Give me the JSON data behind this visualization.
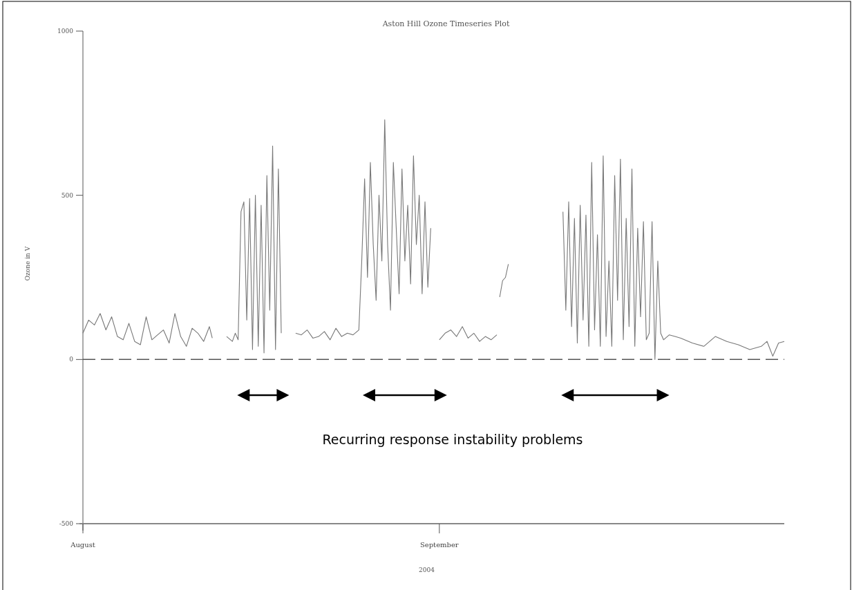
{
  "chart_data": {
    "type": "line",
    "title": "Aston Hill Ozone Timeseries Plot",
    "xlabel": "2004",
    "ylabel": "Ozone in V",
    "annotations": [
      "Recurring response instability problems"
    ],
    "xlim": [
      "2004-08-01",
      "2004-10-01"
    ],
    "xticks": [
      {
        "value": "2004-08-01",
        "label": "August"
      },
      {
        "value": "2004-09-01",
        "label": "September"
      }
    ],
    "ylim": [
      -500,
      1000
    ],
    "yticks": [
      -500,
      0,
      500,
      1000
    ],
    "ref_lines": [
      {
        "axis": "y",
        "value": 0,
        "line_style": "dashed",
        "color": "#555555"
      }
    ],
    "series": [
      {
        "color": "#777777",
        "x": [
          "2004-08-01T00:00",
          "2004-08-01T12:00",
          "2004-08-02T00:00",
          "2004-08-02T12:00",
          "2004-08-03T00:00",
          "2004-08-03T12:00",
          "2004-08-04T00:00",
          "2004-08-04T12:00",
          "2004-08-05T00:00",
          "2004-08-05T12:00",
          "2004-08-06T00:00",
          "2004-08-06T12:00",
          "2004-08-07T00:00",
          "2004-08-07T12:00",
          "2004-08-08T00:00",
          "2004-08-08T12:00",
          "2004-08-09T00:00",
          "2004-08-09T12:00",
          "2004-08-10T00:00",
          "2004-08-10T12:00",
          "2004-08-11T00:00",
          "2004-08-11T12:00",
          "2004-08-12T00:00",
          "2004-08-12T06:00",
          "2004-08-12T12:00",
          "2004-08-13T12:00",
          "2004-08-14T00:00",
          "2004-08-14T06:00",
          "2004-08-14T12:00",
          "2004-08-14T18:00",
          "2004-08-15T00:00",
          "2004-08-15T06:00",
          "2004-08-15T12:00",
          "2004-08-15T18:00",
          "2004-08-16T00:00",
          "2004-08-16T06:00",
          "2004-08-16T12:00",
          "2004-08-16T18:00",
          "2004-08-17T00:00",
          "2004-08-17T06:00",
          "2004-08-17T12:00",
          "2004-08-17T18:00",
          "2004-08-18T00:00",
          "2004-08-18T06:00",
          "2004-08-18T12:00",
          "2004-08-19T12:00",
          "2004-08-20T00:00",
          "2004-08-20T12:00",
          "2004-08-21T00:00",
          "2004-08-21T12:00",
          "2004-08-22T00:00",
          "2004-08-22T12:00",
          "2004-08-23T00:00",
          "2004-08-23T12:00",
          "2004-08-24T00:00",
          "2004-08-24T12:00",
          "2004-08-25T00:00",
          "2004-08-25T06:00",
          "2004-08-25T12:00",
          "2004-08-25T18:00",
          "2004-08-26T00:00",
          "2004-08-26T06:00",
          "2004-08-26T12:00",
          "2004-08-26T18:00",
          "2004-08-27T00:00",
          "2004-08-27T06:00",
          "2004-08-27T12:00",
          "2004-08-27T18:00",
          "2004-08-28T00:00",
          "2004-08-28T06:00",
          "2004-08-28T12:00",
          "2004-08-28T18:00",
          "2004-08-29T00:00",
          "2004-08-29T06:00",
          "2004-08-29T12:00",
          "2004-08-29T18:00",
          "2004-08-30T00:00",
          "2004-08-30T06:00",
          "2004-08-30T12:00",
          "2004-08-30T18:00",
          "2004-08-31T00:00",
          "2004-08-31T06:00",
          "2004-08-31T15:00",
          "2004-09-01T00:00",
          "2004-09-01T12:00",
          "2004-09-02T00:00",
          "2004-09-02T12:00",
          "2004-09-03T00:00",
          "2004-09-03T12:00",
          "2004-09-04T00:00",
          "2004-09-04T12:00",
          "2004-09-05T00:00",
          "2004-09-05T12:00",
          "2004-09-06T00:00",
          "2004-09-06T03:00",
          "2004-09-06T06:00",
          "2004-09-06T12:00",
          "2004-09-06T18:00",
          "2004-09-07T00:00",
          "2004-09-07T06:00",
          "2004-09-11T18:00",
          "2004-09-12T00:00",
          "2004-09-12T06:00",
          "2004-09-12T12:00",
          "2004-09-12T18:00",
          "2004-09-13T00:00",
          "2004-09-13T06:00",
          "2004-09-13T12:00",
          "2004-09-13T18:00",
          "2004-09-14T00:00",
          "2004-09-14T06:00",
          "2004-09-14T12:00",
          "2004-09-14T18:00",
          "2004-09-15T00:00",
          "2004-09-15T06:00",
          "2004-09-15T12:00",
          "2004-09-15T18:00",
          "2004-09-16T00:00",
          "2004-09-16T06:00",
          "2004-09-16T12:00",
          "2004-09-16T18:00",
          "2004-09-17T00:00",
          "2004-09-17T06:00",
          "2004-09-17T12:00",
          "2004-09-17T18:00",
          "2004-09-18T00:00",
          "2004-09-18T06:00",
          "2004-09-18T12:00",
          "2004-09-18T18:00",
          "2004-09-19T00:00",
          "2004-09-19T06:00",
          "2004-09-19T12:00",
          "2004-09-19T18:00",
          "2004-09-20T00:00",
          "2004-09-20T06:00",
          "2004-09-20T12:00",
          "2004-09-21T00:00",
          "2004-09-21T12:00",
          "2004-09-22T00:00",
          "2004-09-23T00:00",
          "2004-09-24T00:00",
          "2004-09-25T00:00",
          "2004-09-26T00:00",
          "2004-09-27T00:00",
          "2004-09-28T00:00",
          "2004-09-29T00:00",
          "2004-09-29T12:00",
          "2004-09-30T00:00",
          "2004-09-30T12:00",
          "2004-10-01T00:00"
        ],
        "values": [
          80,
          120,
          105,
          140,
          90,
          130,
          70,
          60,
          110,
          55,
          45,
          130,
          60,
          75,
          90,
          50,
          140,
          70,
          40,
          95,
          80,
          55,
          100,
          65,
          null,
          70,
          55,
          80,
          60,
          450,
          480,
          120,
          490,
          30,
          500,
          40,
          470,
          20,
          560,
          150,
          650,
          30,
          580,
          80,
          null,
          80,
          75,
          90,
          65,
          70,
          85,
          60,
          95,
          70,
          80,
          75,
          90,
          300,
          550,
          250,
          600,
          350,
          180,
          500,
          300,
          730,
          350,
          150,
          600,
          400,
          200,
          580,
          300,
          470,
          230,
          620,
          350,
          500,
          200,
          480,
          220,
          400,
          null,
          60,
          80,
          90,
          70,
          100,
          65,
          80,
          55,
          70,
          60,
          75,
          null,
          190,
          240,
          250,
          290,
          null,
          450,
          150,
          480,
          100,
          430,
          50,
          470,
          120,
          440,
          40,
          600,
          90,
          380,
          40,
          620,
          70,
          300,
          40,
          560,
          180,
          610,
          60,
          430,
          100,
          580,
          40,
          400,
          130,
          420,
          60,
          80,
          420,
          0,
          300,
          80,
          60,
          75,
          70,
          65,
          50,
          40,
          70,
          55,
          45,
          30,
          40,
          55,
          10,
          50,
          55
        ]
      }
    ]
  }
}
